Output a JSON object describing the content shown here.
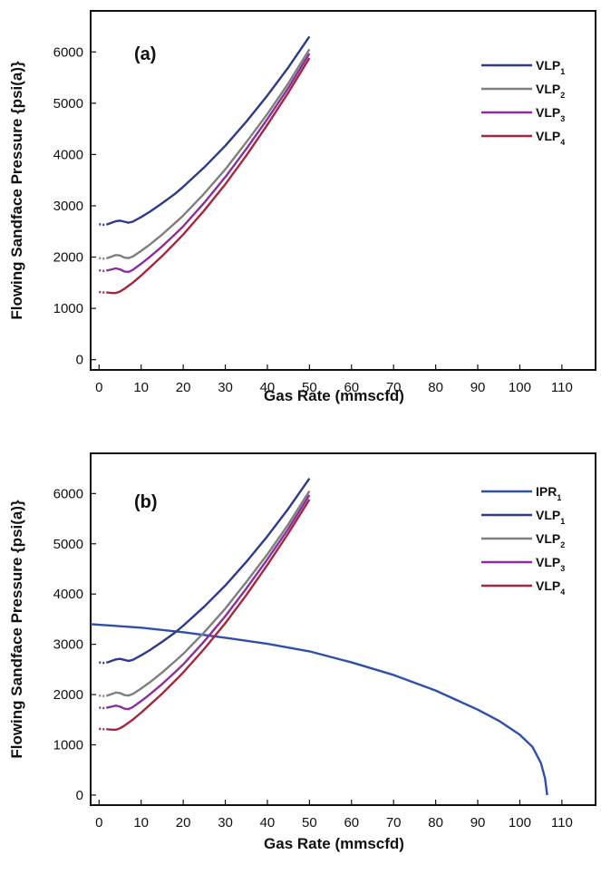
{
  "chart_data": [
    {
      "type": "line",
      "panel_label": "(a)",
      "xlabel": "Gas Rate (mmscfd)",
      "ylabel": "Flowing Sandface Pressure {psi(a)}",
      "xlim": [
        -2,
        118
      ],
      "ylim": [
        -200,
        6800
      ],
      "x_ticks": [
        0,
        10,
        20,
        30,
        40,
        50,
        60,
        70,
        80,
        90,
        100,
        110
      ],
      "y_ticks": [
        0,
        1000,
        2000,
        3000,
        4000,
        5000,
        6000
      ],
      "grid": false,
      "legend_position": "top-right",
      "series": [
        {
          "name": "VLP",
          "sub": "1",
          "color": "#2e3a8c",
          "x": [
            0,
            1,
            2,
            3,
            4,
            5,
            6,
            7,
            8,
            10,
            12,
            15,
            18,
            20,
            25,
            30,
            35,
            40,
            45,
            50
          ],
          "y": [
            2640,
            2630,
            2640,
            2670,
            2700,
            2710,
            2690,
            2670,
            2690,
            2780,
            2880,
            3050,
            3230,
            3370,
            3750,
            4170,
            4640,
            5150,
            5700,
            6300
          ]
        },
        {
          "name": "VLP",
          "sub": "2",
          "color": "#7f7f7f",
          "x": [
            0,
            1,
            2,
            3,
            4,
            5,
            6,
            7,
            8,
            10,
            12,
            15,
            18,
            20,
            25,
            30,
            35,
            40,
            45,
            50
          ],
          "y": [
            1980,
            1970,
            1980,
            2010,
            2040,
            2030,
            1990,
            1980,
            2010,
            2120,
            2240,
            2440,
            2660,
            2810,
            3240,
            3710,
            4240,
            4790,
            5390,
            6050
          ]
        },
        {
          "name": "VLP",
          "sub": "3",
          "color": "#8b2f9e",
          "x": [
            0,
            1,
            2,
            3,
            4,
            5,
            6,
            7,
            8,
            10,
            12,
            15,
            18,
            20,
            25,
            30,
            35,
            40,
            45,
            50
          ],
          "y": [
            1740,
            1730,
            1740,
            1760,
            1780,
            1760,
            1720,
            1710,
            1750,
            1870,
            2000,
            2210,
            2440,
            2600,
            3060,
            3560,
            4110,
            4690,
            5300,
            5970
          ]
        },
        {
          "name": "VLP",
          "sub": "4",
          "color": "#a3283f",
          "x": [
            0,
            1,
            2,
            3,
            4,
            5,
            6,
            7,
            8,
            10,
            12,
            15,
            18,
            20,
            25,
            30,
            35,
            40,
            45,
            50
          ],
          "y": [
            1320,
            1310,
            1310,
            1300,
            1300,
            1330,
            1380,
            1440,
            1500,
            1640,
            1790,
            2020,
            2270,
            2440,
            2910,
            3420,
            3980,
            4580,
            5210,
            5880
          ]
        }
      ]
    },
    {
      "type": "line",
      "panel_label": "(b)",
      "xlabel": "Gas Rate (mmscfd)",
      "ylabel": "Flowing Sandface Pressure {psi(a)}",
      "xlim": [
        -2,
        118
      ],
      "ylim": [
        -200,
        6800
      ],
      "x_ticks": [
        0,
        10,
        20,
        30,
        40,
        50,
        60,
        70,
        80,
        90,
        100,
        110
      ],
      "y_ticks": [
        0,
        1000,
        2000,
        3000,
        4000,
        5000,
        6000
      ],
      "grid": false,
      "legend_position": "top-right",
      "series": [
        {
          "name": "IPR",
          "sub": "1",
          "color": "#3050a8",
          "x": [
            -2,
            0,
            10,
            20,
            30,
            40,
            50,
            60,
            70,
            80,
            90,
            95,
            100,
            103,
            105,
            106,
            106.5
          ],
          "y": [
            3400,
            3390,
            3330,
            3240,
            3130,
            3010,
            2860,
            2640,
            2390,
            2080,
            1700,
            1480,
            1200,
            960,
            640,
            330,
            0
          ]
        },
        {
          "name": "VLP",
          "sub": "1",
          "color": "#2e3a8c",
          "x": [
            0,
            1,
            2,
            3,
            4,
            5,
            6,
            7,
            8,
            10,
            12,
            15,
            18,
            20,
            25,
            30,
            35,
            40,
            45,
            50
          ],
          "y": [
            2640,
            2630,
            2640,
            2670,
            2700,
            2710,
            2690,
            2670,
            2690,
            2780,
            2880,
            3050,
            3230,
            3370,
            3750,
            4170,
            4640,
            5150,
            5700,
            6300
          ]
        },
        {
          "name": "VLP",
          "sub": "2",
          "color": "#7f7f7f",
          "x": [
            0,
            1,
            2,
            3,
            4,
            5,
            6,
            7,
            8,
            10,
            12,
            15,
            18,
            20,
            25,
            30,
            35,
            40,
            45,
            50
          ],
          "y": [
            1980,
            1970,
            1980,
            2010,
            2040,
            2030,
            1990,
            1980,
            2010,
            2120,
            2240,
            2440,
            2660,
            2810,
            3240,
            3710,
            4240,
            4790,
            5390,
            6050
          ]
        },
        {
          "name": "VLP",
          "sub": "3",
          "color": "#8b2f9e",
          "x": [
            0,
            1,
            2,
            3,
            4,
            5,
            6,
            7,
            8,
            10,
            12,
            15,
            18,
            20,
            25,
            30,
            35,
            40,
            45,
            50
          ],
          "y": [
            1740,
            1730,
            1740,
            1760,
            1780,
            1760,
            1720,
            1710,
            1750,
            1870,
            2000,
            2210,
            2440,
            2600,
            3060,
            3560,
            4110,
            4690,
            5300,
            5970
          ]
        },
        {
          "name": "VLP",
          "sub": "4",
          "color": "#a3283f",
          "x": [
            0,
            1,
            2,
            3,
            4,
            5,
            6,
            7,
            8,
            10,
            12,
            15,
            18,
            20,
            25,
            30,
            35,
            40,
            45,
            50
          ],
          "y": [
            1320,
            1310,
            1310,
            1300,
            1300,
            1330,
            1380,
            1440,
            1500,
            1640,
            1790,
            2020,
            2270,
            2440,
            2910,
            3420,
            3980,
            4580,
            5210,
            5880
          ]
        }
      ]
    }
  ]
}
